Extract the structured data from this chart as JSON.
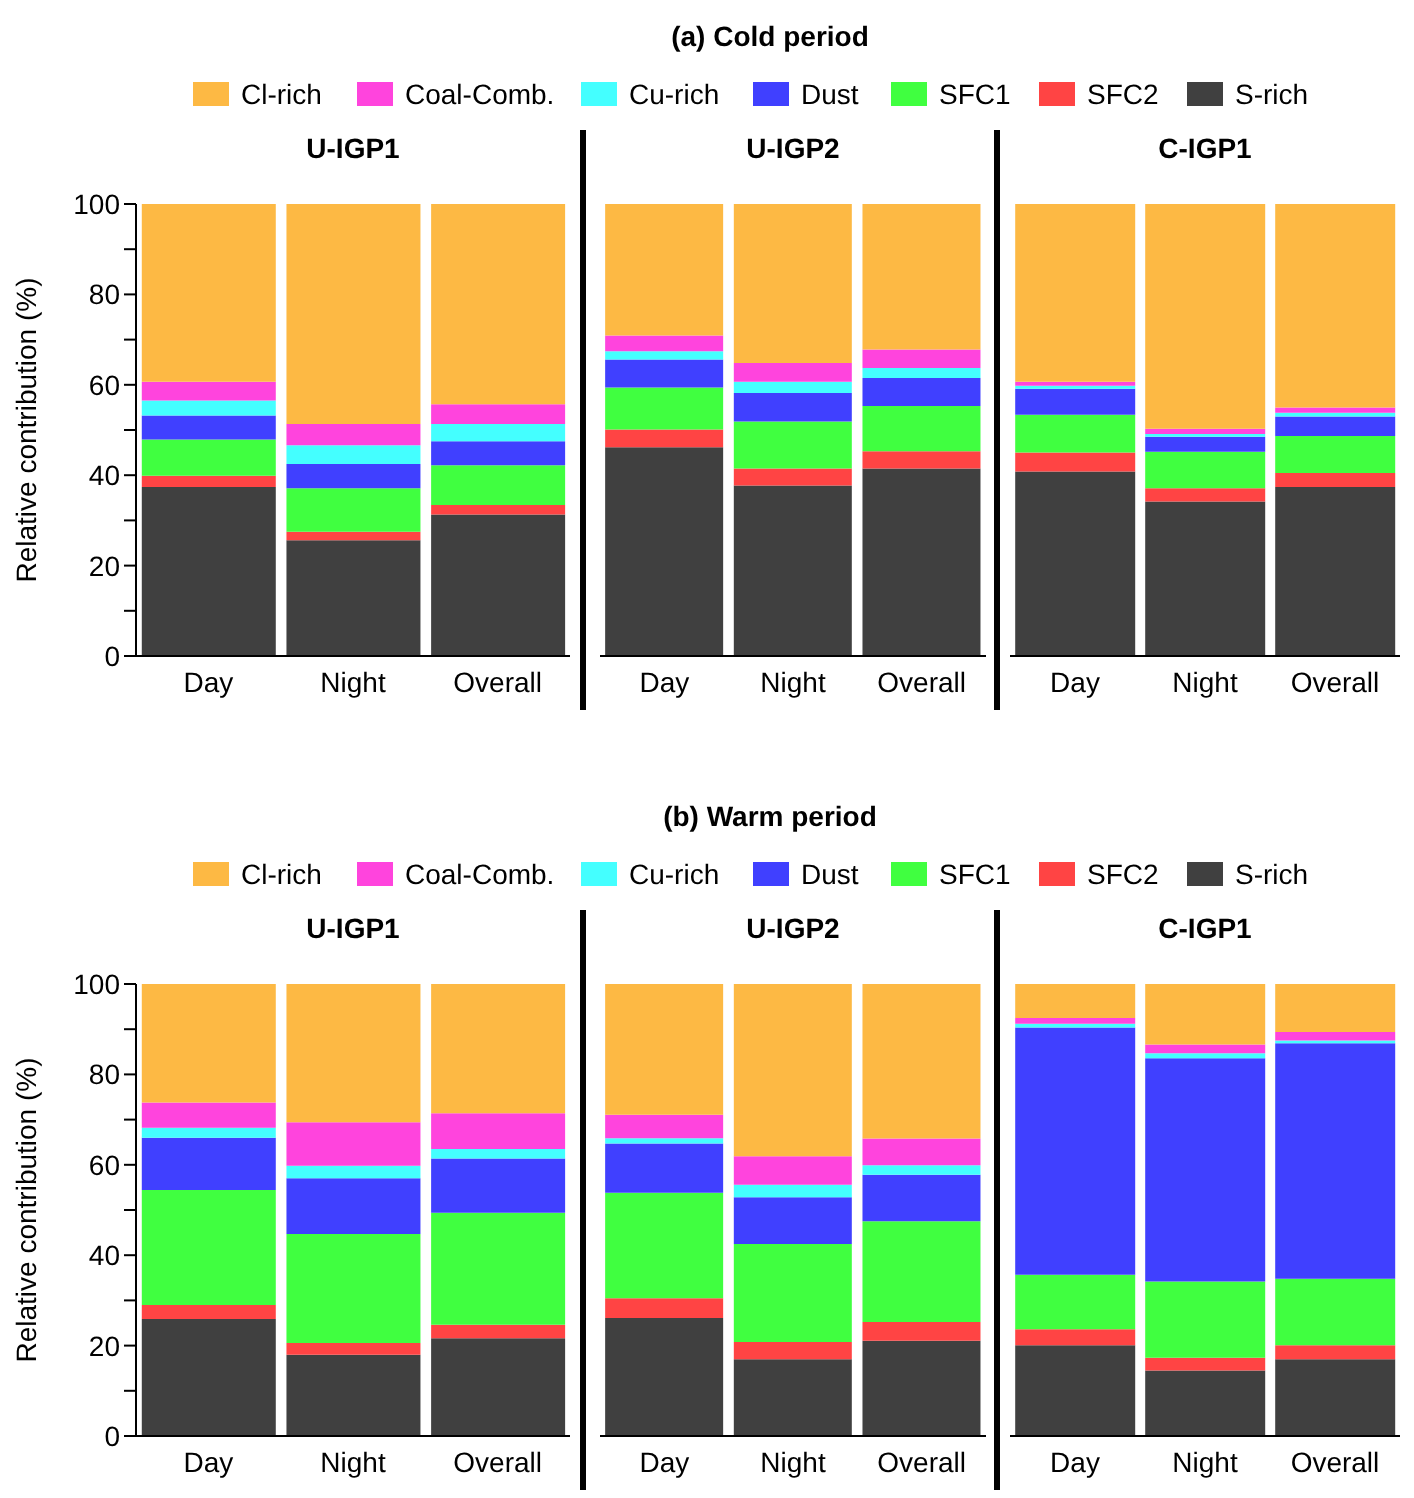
{
  "chart_data": [
    {
      "type": "bar",
      "title": "U-IGP1",
      "annotations": [
        "(a) Cold period"
      ],
      "legend": "top",
      "stacked": true,
      "ylabel": "Relative contribution (%)",
      "categories": [
        "Day",
        "Night",
        "Overall"
      ],
      "ylim": [
        0,
        100
      ],
      "yticks": [
        0,
        {
          "value": 10,
          "label": null
        },
        20,
        {
          "value": 30,
          "label": null
        },
        40,
        {
          "value": 50,
          "label": null
        },
        60,
        {
          "value": 70,
          "label": null
        },
        80,
        {
          "value": 90,
          "label": null
        },
        100
      ],
      "series": [
        {
          "name": "S-rich",
          "color": "#404040",
          "values": [
            37.4,
            25.6,
            31.3
          ]
        },
        {
          "name": "SFC2",
          "color": "#ff4444",
          "values": [
            2.5,
            1.9,
            2.1
          ]
        },
        {
          "name": "SFC1",
          "color": "#40ff40",
          "values": [
            8,
            9.6,
            8.8
          ]
        },
        {
          "name": "Dust",
          "color": "#4040ff",
          "values": [
            5.3,
            5.4,
            5.3
          ]
        },
        {
          "name": "Cu-rich",
          "color": "#44ffff",
          "values": [
            3.3,
            4.1,
            3.8
          ]
        },
        {
          "name": "Coal-Comb.",
          "color": "#ff44dd",
          "values": [
            4.2,
            4.7,
            4.4
          ]
        },
        {
          "name": "Cl-rich",
          "color": "#fdb944",
          "values": [
            39.3,
            48.7,
            44.3
          ]
        }
      ]
    },
    {
      "type": "bar",
      "title": "U-IGP2",
      "stacked": true,
      "tick_labels": "x",
      "categories": [
        "Day",
        "Night",
        "Overall"
      ],
      "ylim": [
        0,
        100
      ],
      "series": [
        {
          "color": "#404040",
          "values": [
            46.2,
            37.7,
            41.5
          ]
        },
        {
          "color": "#ff4444",
          "values": [
            3.9,
            3.8,
            3.8
          ]
        },
        {
          "color": "#40ff40",
          "values": [
            9.3,
            10.4,
            10
          ]
        },
        {
          "color": "#4040ff",
          "values": [
            6.2,
            6.3,
            6.2
          ]
        },
        {
          "color": "#44ffff",
          "values": [
            1.8,
            2.5,
            2.2
          ]
        },
        {
          "color": "#ff44dd",
          "values": [
            3.5,
            4.1,
            4.1
          ]
        },
        {
          "color": "#fdb944",
          "values": [
            29.1,
            35.2,
            32.2
          ]
        }
      ]
    },
    {
      "type": "bar",
      "title": "C-IGP1",
      "stacked": true,
      "tick_labels": "x",
      "categories": [
        "Day",
        "Night",
        "Overall"
      ],
      "ylim": [
        0,
        100
      ],
      "series": [
        {
          "color": "#404040",
          "values": [
            40.8,
            34.2,
            37.4
          ]
        },
        {
          "color": "#ff4444",
          "values": [
            4.2,
            2.9,
            3.1
          ]
        },
        {
          "color": "#40ff40",
          "values": [
            8.4,
            8.1,
            8.2
          ]
        },
        {
          "color": "#4040ff",
          "values": [
            5.7,
            3.3,
            4.3
          ]
        },
        {
          "color": "#44ffff",
          "values": [
            0.7,
            0.6,
            0.8
          ]
        },
        {
          "color": "#ff44dd",
          "values": [
            0.9,
            1.2,
            1.2
          ]
        },
        {
          "color": "#fdb944",
          "values": [
            39.3,
            49.7,
            45
          ]
        }
      ]
    },
    {
      "type": "bar",
      "title": "U-IGP1",
      "annotations": [
        "(b) Warm period"
      ],
      "legend": "top",
      "stacked": true,
      "ylabel": "Relative contribution (%)",
      "categories": [
        "Day",
        "Night",
        "Overall"
      ],
      "ylim": [
        0,
        100
      ],
      "yticks": [
        0,
        {
          "value": 10,
          "label": null
        },
        20,
        {
          "value": 30,
          "label": null
        },
        40,
        {
          "value": 50,
          "label": null
        },
        60,
        {
          "value": 70,
          "label": null
        },
        80,
        {
          "value": 90,
          "label": null
        },
        100
      ],
      "series": [
        {
          "name": "S-rich",
          "color": "#404040",
          "values": [
            25.9,
            18,
            21.6
          ]
        },
        {
          "name": "SFC2",
          "color": "#ff4444",
          "values": [
            3.1,
            2.6,
            3
          ]
        },
        {
          "name": "SFC1",
          "color": "#40ff40",
          "values": [
            25.4,
            24.1,
            24.8
          ]
        },
        {
          "name": "Dust",
          "color": "#4040ff",
          "values": [
            11.6,
            12.3,
            12
          ]
        },
        {
          "name": "Cu-rich",
          "color": "#44ffff",
          "values": [
            2.2,
            2.8,
            2.1
          ]
        },
        {
          "name": "Coal-Comb.",
          "color": "#ff44dd",
          "values": [
            5.6,
            9.6,
            7.9
          ]
        },
        {
          "name": "Cl-rich",
          "color": "#fdb944",
          "values": [
            26.2,
            30.6,
            28.6
          ]
        }
      ]
    },
    {
      "type": "bar",
      "title": "U-IGP2",
      "stacked": true,
      "tick_labels": "x",
      "categories": [
        "Day",
        "Night",
        "Overall"
      ],
      "ylim": [
        0,
        100
      ],
      "series": [
        {
          "color": "#404040",
          "values": [
            26.1,
            17,
            21.1
          ]
        },
        {
          "color": "#ff4444",
          "values": [
            4.4,
            3.8,
            4.1
          ]
        },
        {
          "color": "#40ff40",
          "values": [
            23.3,
            21.7,
            22.3
          ]
        },
        {
          "color": "#4040ff",
          "values": [
            10.9,
            10.3,
            10.3
          ]
        },
        {
          "color": "#44ffff",
          "values": [
            1.2,
            2.8,
            2.1
          ]
        },
        {
          "color": "#ff44dd",
          "values": [
            5.2,
            6.3,
            5.9
          ]
        },
        {
          "color": "#fdb944",
          "values": [
            28.9,
            38.1,
            34.2
          ]
        }
      ]
    },
    {
      "type": "bar",
      "title": "C-IGP1",
      "stacked": true,
      "tick_labels": "x",
      "categories": [
        "Day",
        "Night",
        "Overall"
      ],
      "ylim": [
        0,
        100
      ],
      "series": [
        {
          "color": "#404040",
          "values": [
            20.1,
            14.5,
            17
          ]
        },
        {
          "color": "#ff4444",
          "values": [
            3.5,
            2.8,
            3.1
          ]
        },
        {
          "color": "#40ff40",
          "values": [
            12.1,
            16.9,
            14.7
          ]
        },
        {
          "color": "#4040ff",
          "values": [
            54.7,
            49.4,
            52.1
          ]
        },
        {
          "color": "#44ffff",
          "values": [
            0.8,
            1.1,
            0.6
          ]
        },
        {
          "color": "#ff44dd",
          "values": [
            1.3,
            1.9,
            1.9
          ]
        },
        {
          "color": "#fdb944",
          "values": [
            7.5,
            13.4,
            10.6
          ]
        }
      ]
    }
  ]
}
